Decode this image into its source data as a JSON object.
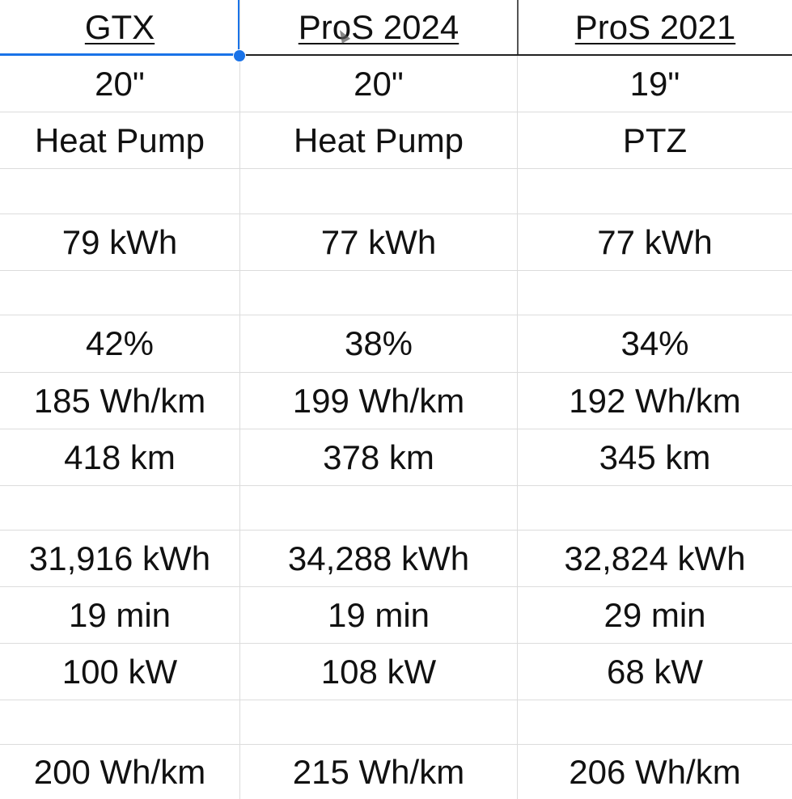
{
  "columns": [
    "GTX",
    "ProS 2024",
    "ProS 2021"
  ],
  "rows": [
    [
      "20\"",
      "20\"",
      "19\""
    ],
    [
      "Heat Pump",
      "Heat Pump",
      "PTZ"
    ],
    [
      "",
      "",
      ""
    ],
    [
      "79 kWh",
      "77 kWh",
      "77 kWh"
    ],
    [
      "",
      "",
      ""
    ],
    [
      "42%",
      "38%",
      "34%"
    ],
    [
      "185 Wh/km",
      "199 Wh/km",
      "192 Wh/km"
    ],
    [
      "418 km",
      "378 km",
      "345 km"
    ],
    [
      "",
      "",
      ""
    ],
    [
      "31,916 kWh",
      "34,288 kWh",
      "32,824 kWh"
    ],
    [
      "19 min",
      "19 min",
      "29 min"
    ],
    [
      "100 kW",
      "108 kW",
      "68 kW"
    ],
    [
      "",
      "",
      ""
    ],
    [
      "200 Wh/km",
      "215 Wh/km",
      "206 Wh/km"
    ]
  ],
  "selection_color": "#1a73e8"
}
